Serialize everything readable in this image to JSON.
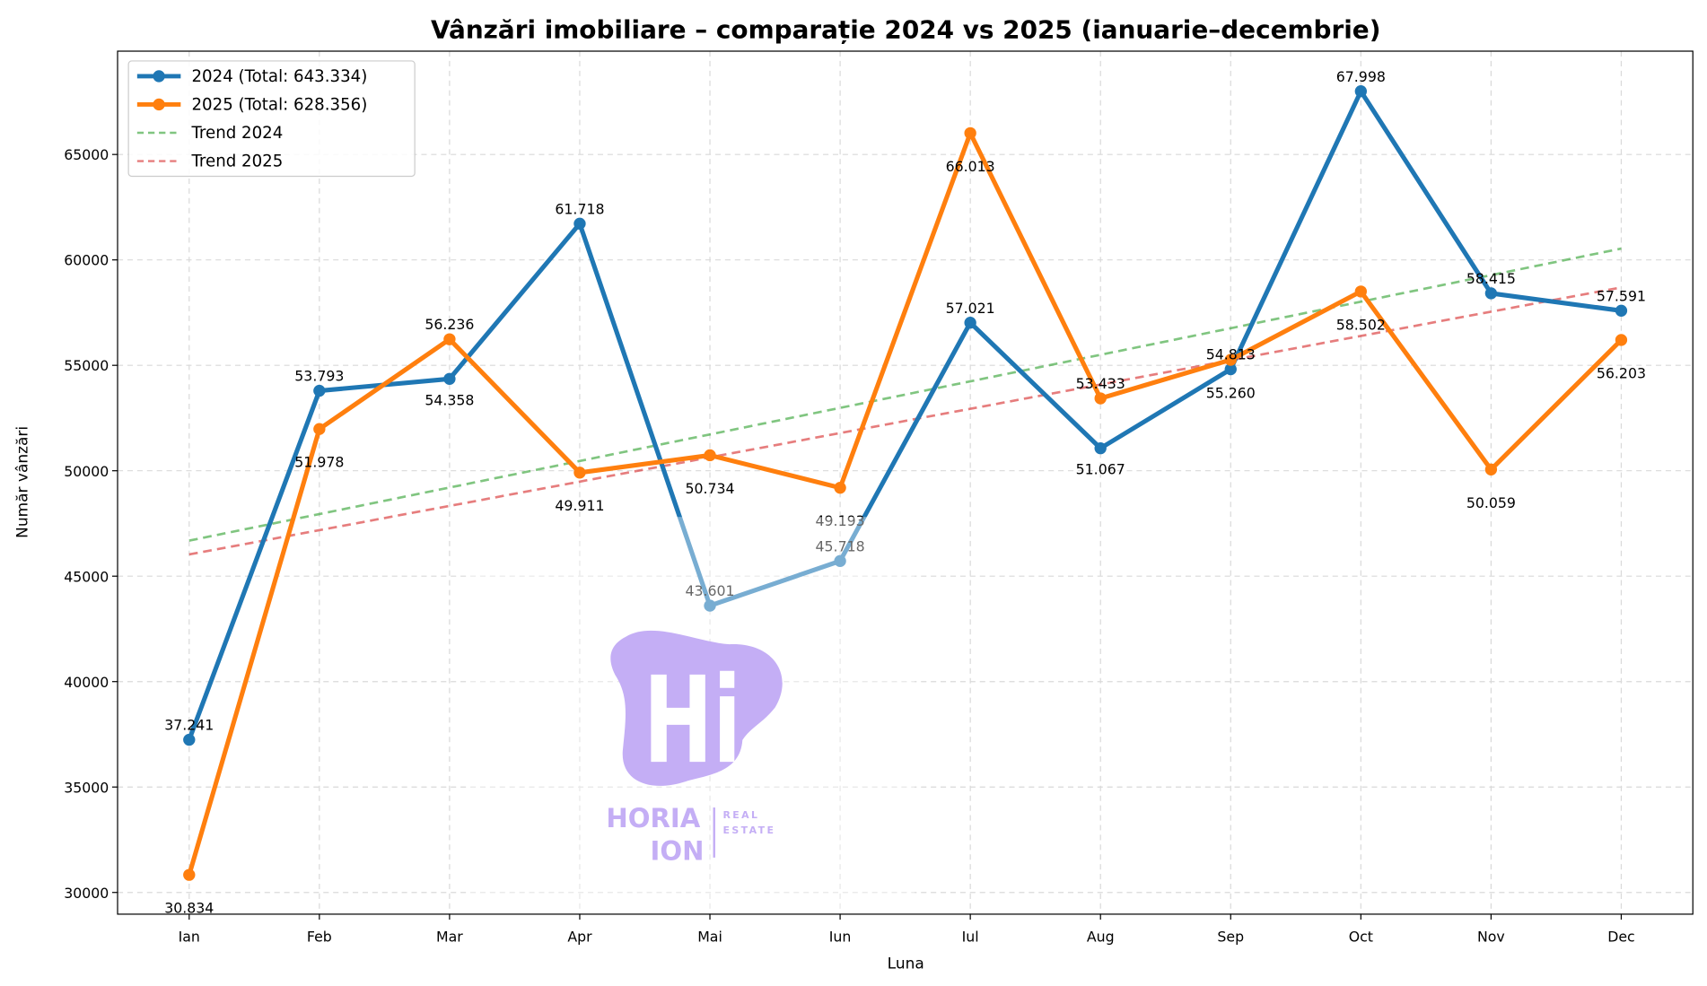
{
  "chart_data": {
    "type": "line",
    "title": "Vânzări imobiliare – comparație 2024 vs 2025 (ianuarie–decembrie)",
    "xlabel": "Luna",
    "ylabel": "Număr vânzări",
    "categories": [
      "Ian",
      "Feb",
      "Mar",
      "Apr",
      "Mai",
      "Iun",
      "Iul",
      "Aug",
      "Sep",
      "Oct",
      "Nov",
      "Dec"
    ],
    "ylim": [
      28970,
      69900
    ],
    "yticks": [
      30000,
      35000,
      40000,
      45000,
      50000,
      55000,
      60000,
      65000
    ],
    "grid": true,
    "legend_placement": "top-left",
    "series": [
      {
        "name": "2024 (Total: 643.334)",
        "color": "#1f77b4",
        "values": [
          37241,
          53793,
          54358,
          61718,
          43601,
          45718,
          57021,
          51067,
          54813,
          67998,
          58415,
          57591
        ],
        "labels": [
          "37.241",
          "53.793",
          "54.358",
          "61.718",
          "43.601",
          "45.718",
          "57.021",
          "51.067",
          "54.813",
          "67.998",
          "58.415",
          "57.591"
        ]
      },
      {
        "name": "2025 (Total: 628.356)",
        "color": "#ff7f0e",
        "values": [
          30834,
          51978,
          56236,
          49911,
          50734,
          49193,
          66013,
          53433,
          55260,
          58502,
          50059,
          56203
        ],
        "labels": [
          "30.834",
          "51.978",
          "56.236",
          "49.911",
          "50.734",
          "49.193",
          "66.013",
          "53.433",
          "55.260",
          "58.502",
          "50.059",
          "56.203"
        ]
      }
    ],
    "trends": [
      {
        "name": "Trend 2024",
        "color": "#2ca02c",
        "of_series": 0
      },
      {
        "name": "Trend 2025",
        "color": "#d62728",
        "of_series": 1
      }
    ]
  },
  "watermark": {
    "mark": "Hi",
    "name_line1": "HORIA",
    "name_line2": "ION",
    "tag_line1": "REAL",
    "tag_line2": "ESTATE",
    "color": "#c4aef5"
  }
}
